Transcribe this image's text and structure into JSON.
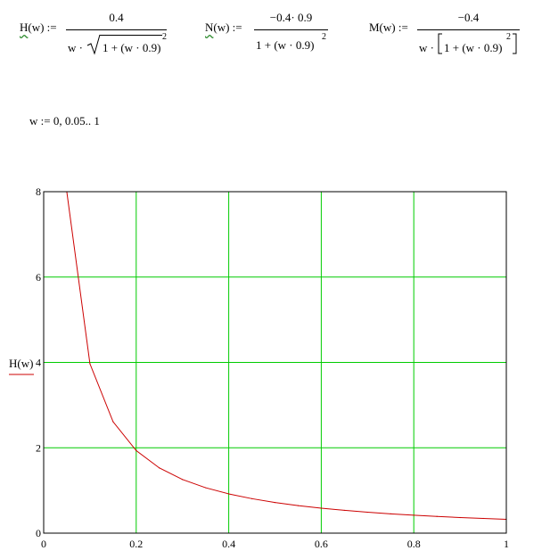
{
  "equations": {
    "h": {
      "fn_letter": "H",
      "fn_rest": "(w) :=",
      "numerator": "0.4",
      "den_prefix": "w ·",
      "den_radicand": "1 + (w · 0.9)",
      "den_exp": "2"
    },
    "n": {
      "fn_letter": "N",
      "fn_rest": "(w) :=",
      "numerator": "−0.4· 0.9",
      "den_base": "1 + (w · 0.9)",
      "den_exp": "2"
    },
    "m": {
      "fn_label": "M(w) :=",
      "numerator": "−0.4",
      "den_prefix": "w ·",
      "den_inner": "1 + (w · 0.9)",
      "den_exp": "2"
    }
  },
  "range_def": "w := 0, 0.05.. 1",
  "chart_data": {
    "type": "line",
    "x": [
      0.05,
      0.1,
      0.15,
      0.2,
      0.25,
      0.3,
      0.35,
      0.4,
      0.45,
      0.5,
      0.55,
      0.6,
      0.65,
      0.7,
      0.75,
      0.8,
      0.85,
      0.9,
      0.95,
      1.0
    ],
    "series": [
      {
        "name": "H(w)",
        "color": "#cc0000",
        "values": [
          7.996,
          3.968,
          2.61,
          1.934,
          1.528,
          1.257,
          1.064,
          0.92,
          0.808,
          0.718,
          0.645,
          0.585,
          0.534,
          0.49,
          0.452,
          0.42,
          0.391,
          0.366,
          0.344,
          0.324
        ]
      }
    ],
    "xlim": [
      0,
      1
    ],
    "ylim": [
      0,
      8
    ],
    "xticks": [
      "0",
      "0.2",
      "0.4",
      "0.6",
      "0.8",
      "1"
    ],
    "yticks": [
      "0",
      "2",
      "4",
      "6",
      "8"
    ],
    "ylabel": "H(w)",
    "xlabel": "",
    "grid": true,
    "grid_color": "#00cc00"
  }
}
